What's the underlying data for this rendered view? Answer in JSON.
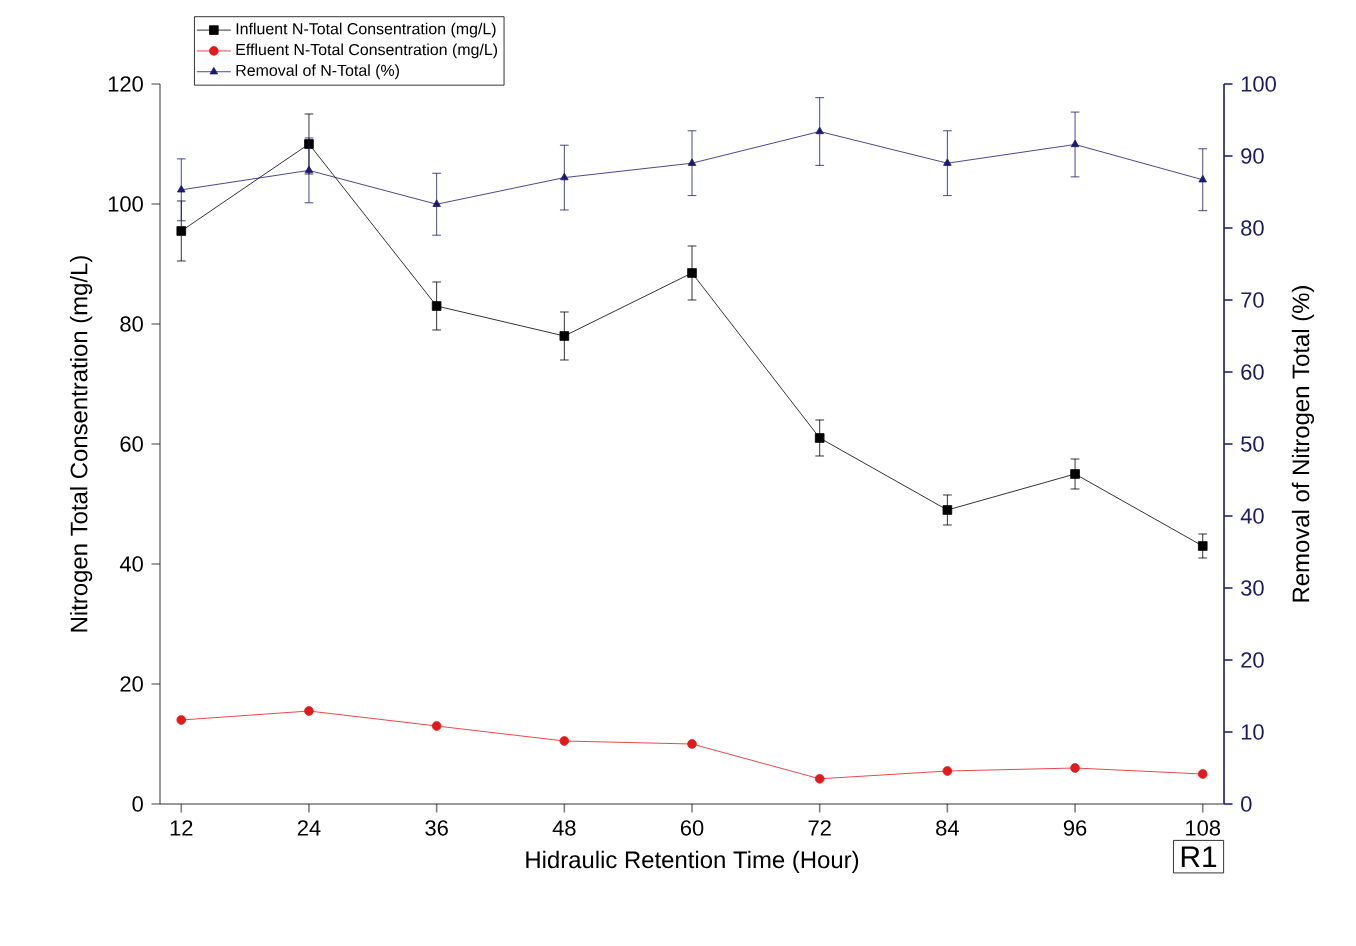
{
  "chart_data": {
    "type": "line",
    "xlabel": "Hidraulic Retention Time (Hour)",
    "ylabel": "Nitrogen Total Consentration (mg/L)",
    "y2label": "Removal of Nitrogen Total (%)",
    "x": [
      12,
      24,
      36,
      48,
      60,
      72,
      84,
      96,
      108
    ],
    "series": [
      {
        "name": "Influent N-Total Consentration (mg/L)",
        "color": "#000000",
        "marker": "square",
        "values": [
          95.5,
          110,
          83,
          78,
          88.5,
          61,
          49,
          55,
          43
        ],
        "errors": [
          5,
          5,
          4,
          4,
          4.5,
          3,
          2.5,
          2.5,
          2
        ]
      },
      {
        "name": "Effluent N-Total Consentration (mg/L)",
        "color": "#e31a1c",
        "marker": "circle",
        "values": [
          14,
          15.5,
          13,
          10.5,
          10,
          4.2,
          5.5,
          6,
          5
        ]
      },
      {
        "name": "Removal of N-Total (%)",
        "color": "#1a1a6e",
        "marker": "triangle",
        "axis": "y2",
        "values": [
          85.3,
          88,
          83.3,
          87,
          89,
          93.4,
          89,
          91.6,
          86.7
        ],
        "errors": [
          4.3,
          4.5,
          4.3,
          4.5,
          4.5,
          4.7,
          4.5,
          4.5,
          4.3
        ]
      }
    ],
    "xlim": [
      10,
      110
    ],
    "xticks": [
      12,
      24,
      36,
      48,
      60,
      72,
      84,
      96,
      108
    ],
    "ylim": [
      0,
      120
    ],
    "yticks": [
      0,
      20,
      40,
      60,
      80,
      100,
      120
    ],
    "y2lim": [
      0,
      100
    ],
    "y2ticks": [
      0,
      10,
      20,
      30,
      40,
      50,
      60,
      70,
      80,
      90,
      100
    ],
    "legend": "top left",
    "grid": false,
    "annotations": [
      "R1"
    ]
  }
}
